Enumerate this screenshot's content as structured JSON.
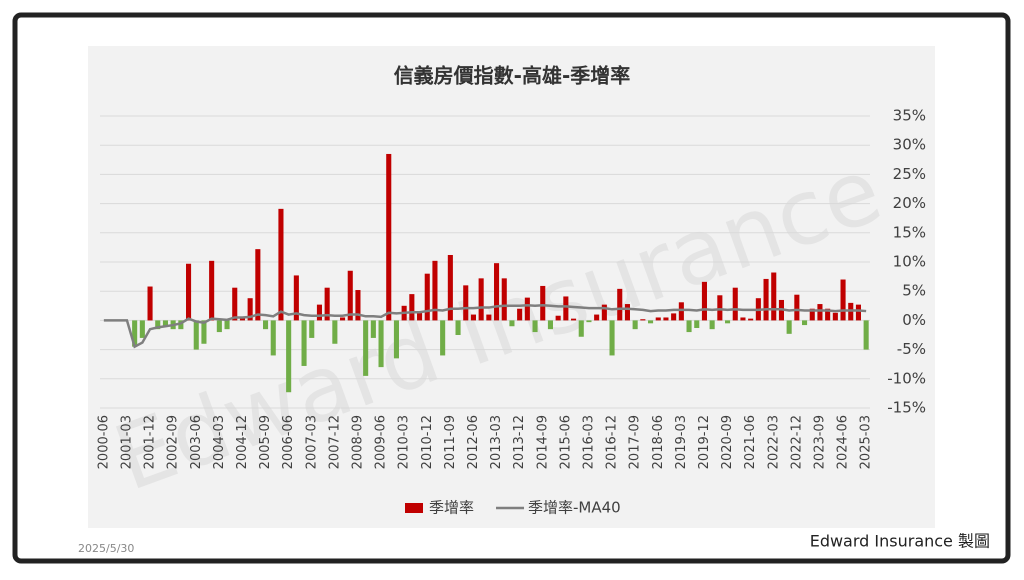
{
  "chart_data": {
    "type": "bar",
    "title": "信義房價指數-高雄-季增率",
    "watermark": "Edward Insurance",
    "date": "2025/5/30",
    "credit": "Edward Insurance 製圖",
    "categories": [
      "2000-06",
      null,
      null,
      "2001-03",
      null,
      null,
      "2001-12",
      null,
      null,
      "2002-09",
      null,
      null,
      "2003-06",
      null,
      null,
      "2004-03",
      null,
      null,
      "2004-12",
      null,
      null,
      "2005-09",
      null,
      null,
      "2006-06",
      null,
      null,
      "2007-03",
      null,
      null,
      "2007-12",
      null,
      null,
      "2008-09",
      null,
      null,
      "2009-06",
      null,
      null,
      "2010-03",
      null,
      null,
      "2010-12",
      null,
      null,
      "2011-09",
      null,
      null,
      "2012-06",
      null,
      null,
      "2013-03",
      null,
      null,
      "2013-12",
      null,
      null,
      "2014-09",
      null,
      null,
      "2015-06",
      null,
      null,
      "2016-03",
      null,
      null,
      "2016-12",
      null,
      null,
      "2017-09",
      null,
      null,
      "2018-06",
      null,
      null,
      "2019-03",
      null,
      null,
      "2019-12",
      null,
      null,
      "2020-09",
      null,
      null,
      "2021-06",
      null,
      null,
      "2022-03",
      null,
      null,
      "2022-12",
      null,
      null,
      "2023-09",
      null,
      null,
      "2024-06",
      null,
      null,
      "2025-03"
    ],
    "series": [
      {
        "name": "季增率",
        "type": "bar",
        "color": "#c00000",
        "negative_color": "#70ad47",
        "values": [
          0,
          0,
          0,
          0,
          -4.5,
          -3,
          5.8,
          -1.5,
          -1,
          -1.5,
          -1.5,
          9.7,
          -5,
          -4,
          10.2,
          -2,
          -1.5,
          5.6,
          0.5,
          3.8,
          12.2,
          -1.5,
          -6,
          19.1,
          -12.3,
          7.7,
          -7.8,
          -3,
          2.7,
          5.6,
          -4,
          0.5,
          8.5,
          5.2,
          -9.5,
          -3,
          -8,
          28.5,
          -6.5,
          2.5,
          4.5,
          1.5,
          8,
          10.2,
          -6,
          11.2,
          -2.5,
          6,
          1,
          7.2,
          1,
          9.8,
          7.2,
          -1,
          2,
          3.9,
          -2,
          5.9,
          -1.5,
          0.8,
          4.1,
          0.3,
          -2.8,
          -0.3,
          1,
          2.7,
          -6,
          5.4,
          2.8,
          -1.5,
          0.2,
          -0.5,
          0.5,
          0.5,
          1.2,
          3.1,
          -2,
          -1.3,
          6.6,
          -1.5,
          4.3,
          -0.5,
          5.6,
          0.5,
          0.3,
          3.8,
          7.1,
          8.2,
          3.5,
          -2.3,
          4.4,
          -0.8,
          2,
          2.8,
          2,
          1.3,
          7,
          3,
          2.7,
          -5
        ]
      },
      {
        "name": "季增率-MA40",
        "type": "line",
        "color": "#7f7f7f",
        "values": [
          0,
          0,
          0,
          0,
          -4.5,
          -3.8,
          -1.5,
          -1.2,
          -1.0,
          -0.8,
          -0.5,
          0.3,
          -0.2,
          -0.4,
          0.3,
          0.2,
          0.1,
          0.5,
          0.5,
          0.6,
          1.0,
          0.9,
          0.7,
          1.5,
          1.0,
          1.2,
          0.9,
          0.8,
          0.8,
          0.9,
          0.8,
          0.8,
          1.0,
          1.0,
          0.7,
          0.7,
          0.6,
          1.3,
          1.2,
          1.3,
          1.4,
          1.4,
          1.6,
          1.8,
          1.7,
          2.0,
          2.0,
          2.1,
          2.1,
          2.2,
          2.2,
          2.4,
          2.5,
          2.5,
          2.5,
          2.6,
          2.5,
          2.6,
          2.5,
          2.4,
          2.4,
          2.3,
          2.2,
          2.1,
          2.1,
          2.1,
          1.9,
          2.0,
          2.0,
          1.9,
          1.8,
          1.6,
          1.7,
          1.7,
          1.8,
          1.8,
          1.8,
          1.7,
          1.9,
          1.8,
          1.9,
          1.8,
          1.9,
          1.8,
          1.8,
          1.8,
          1.9,
          1.9,
          1.9,
          1.7,
          1.8,
          1.7,
          1.7,
          1.7,
          1.7,
          1.6,
          1.7,
          1.7,
          1.7,
          1.6
        ]
      }
    ],
    "ylim": [
      -15,
      35
    ],
    "yticks": [
      {
        "value": -15,
        "label": "-15%"
      },
      {
        "value": -10,
        "label": "-10%"
      },
      {
        "value": -5,
        "label": "-5%"
      },
      {
        "value": 0,
        "label": "0%"
      },
      {
        "value": 5,
        "label": "5%"
      },
      {
        "value": 10,
        "label": "10%"
      },
      {
        "value": 15,
        "label": "15%"
      },
      {
        "value": 20,
        "label": "20%"
      },
      {
        "value": 25,
        "label": "25%"
      },
      {
        "value": 30,
        "label": "30%"
      },
      {
        "value": 35,
        "label": "35%"
      }
    ],
    "grid": true,
    "y_axis_side": "right",
    "legend": "bottom"
  }
}
